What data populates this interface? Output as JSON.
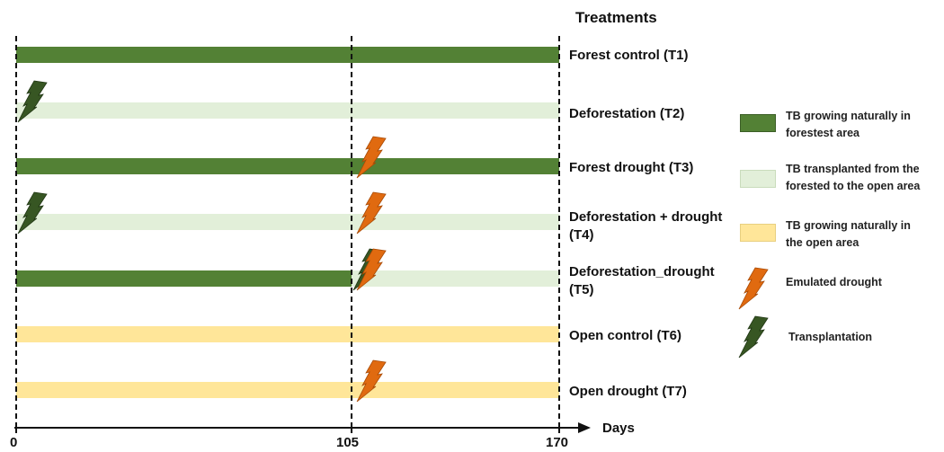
{
  "title": "Treatments",
  "axis": {
    "label": "Days",
    "ticks": [
      {
        "value": 0,
        "label": "0"
      },
      {
        "value": 105,
        "label": "105"
      },
      {
        "value": 170,
        "label": "170"
      }
    ]
  },
  "colors": {
    "forest": "#538135",
    "transplanted": "#e2efd9",
    "open": "#ffe699",
    "drought": "#e06a10",
    "transplantation": "#375623"
  },
  "treatments": [
    {
      "label": "Forest control (T1)",
      "segments": [
        {
          "from": 0,
          "to": 170,
          "type": "forest"
        }
      ],
      "events": []
    },
    {
      "label": "Deforestation  (T2)",
      "segments": [
        {
          "from": 0,
          "to": 170,
          "type": "transplanted"
        }
      ],
      "events": [
        {
          "day": 0,
          "type": "transplantation"
        }
      ]
    },
    {
      "label": "Forest drought (T3)",
      "segments": [
        {
          "from": 0,
          "to": 170,
          "type": "forest"
        }
      ],
      "events": [
        {
          "day": 105,
          "type": "drought"
        }
      ]
    },
    {
      "label": "Deforestation + drought (T4)",
      "segments": [
        {
          "from": 0,
          "to": 170,
          "type": "transplanted"
        }
      ],
      "events": [
        {
          "day": 0,
          "type": "transplantation"
        },
        {
          "day": 105,
          "type": "drought"
        }
      ]
    },
    {
      "label": "Deforestation_drought (T5)",
      "segments": [
        {
          "from": 0,
          "to": 105,
          "type": "forest"
        },
        {
          "from": 105,
          "to": 170,
          "type": "transplanted"
        }
      ],
      "events": [
        {
          "day": 105,
          "type": "transplantation"
        },
        {
          "day": 105,
          "type": "drought"
        }
      ]
    },
    {
      "label": "Open control (T6)",
      "segments": [
        {
          "from": 0,
          "to": 170,
          "type": "open"
        }
      ],
      "events": []
    },
    {
      "label": "Open drought (T7)",
      "segments": [
        {
          "from": 0,
          "to": 170,
          "type": "open"
        }
      ],
      "events": [
        {
          "day": 105,
          "type": "drought"
        }
      ]
    }
  ],
  "legend": {
    "forest": "TB growing naturally in forestest area",
    "transplanted": "TB transplanted from the forested to the open area",
    "open": "TB growing naturally in the open area",
    "drought": "Emulated drought",
    "transplantation": "Transplantation"
  }
}
